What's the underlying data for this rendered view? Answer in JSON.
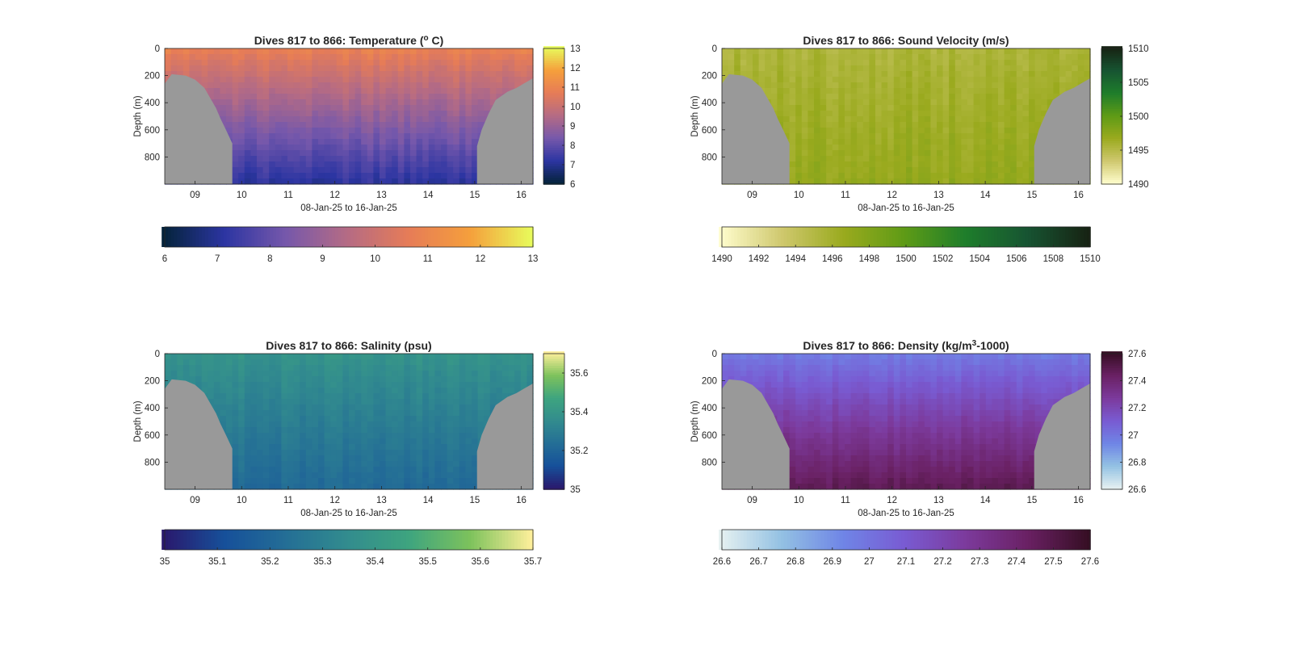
{
  "chart_data": [
    {
      "type": "heatmap",
      "title": "Dives 817 to 866: Temperature (",
      "title_sup": "o",
      "title_end": " C)",
      "xlabel": "08-Jan-25 to 16-Jan-25",
      "ylabel": "Depth (m)",
      "x_ticks": [
        "09",
        "10",
        "11",
        "12",
        "13",
        "14",
        "15",
        "16"
      ],
      "x_range": [
        "08-Jan-25",
        "16-Jan-25"
      ],
      "y_ticks": [
        "0",
        "200",
        "400",
        "600",
        "800"
      ],
      "ylim": [
        0,
        1000
      ],
      "colormap": "thermal",
      "colors": [
        "#04233a",
        "#2c35a2",
        "#7658ab",
        "#b56b84",
        "#e67c57",
        "#f59f3c",
        "#e8fa5b"
      ],
      "surface_value": 10.8,
      "bottom_value": 7.2,
      "clim": [
        6,
        13
      ],
      "right_colorbar_ticks": [
        "6",
        "7",
        "8",
        "9",
        "10",
        "11",
        "12",
        "13"
      ],
      "bottom_colorbar_ticks": [
        "6",
        "7",
        "8",
        "9",
        "10",
        "11",
        "12",
        "13"
      ]
    },
    {
      "type": "heatmap",
      "title": "Dives 817 to 866: Sound Velocity (m/s)",
      "title_sup": "",
      "title_end": "",
      "xlabel": "08-Jan-25 to 16-Jan-25",
      "ylabel": "Depth (m)",
      "x_ticks": [
        "09",
        "10",
        "11",
        "12",
        "13",
        "14",
        "15",
        "16"
      ],
      "x_range": [
        "08-Jan-25",
        "16-Jan-25"
      ],
      "y_ticks": [
        "0",
        "200",
        "400",
        "600",
        "800"
      ],
      "ylim": [
        0,
        1000
      ],
      "colormap": "speed",
      "colors": [
        "#fffdcd",
        "#cfc86e",
        "#9aaa1e",
        "#5e9b16",
        "#1e7d2b",
        "#175432",
        "#172313"
      ],
      "surface_value": 1495.5,
      "bottom_value": 1497.0,
      "clim": [
        1490,
        1510
      ],
      "right_colorbar_ticks": [
        "1490",
        "1495",
        "1500",
        "1505",
        "1510"
      ],
      "bottom_colorbar_ticks": [
        "1490",
        "1492",
        "1494",
        "1496",
        "1498",
        "1500",
        "1502",
        "1504",
        "1506",
        "1508",
        "1510"
      ]
    },
    {
      "type": "heatmap",
      "title": "Dives 817 to 866: Salinity (psu)",
      "title_sup": "",
      "title_end": "",
      "xlabel": "08-Jan-25 to 16-Jan-25",
      "ylabel": "Depth (m)",
      "x_ticks": [
        "09",
        "10",
        "11",
        "12",
        "13",
        "14",
        "15",
        "16"
      ],
      "x_range": [
        "08-Jan-25",
        "16-Jan-25"
      ],
      "y_ticks": [
        "0",
        "200",
        "400",
        "600",
        "800"
      ],
      "ylim": [
        0,
        1000
      ],
      "colormap": "haline",
      "colors": [
        "#2a186c",
        "#16509a",
        "#246e96",
        "#328c8e",
        "#3ea47f",
        "#7dc25c",
        "#fdef9a"
      ],
      "surface_value": 35.38,
      "bottom_value": 35.22,
      "clim": [
        35,
        35.7
      ],
      "right_colorbar_ticks": [
        "35",
        "35.2",
        "35.4",
        "35.6"
      ],
      "bottom_colorbar_ticks": [
        "35",
        "35.1",
        "35.2",
        "35.3",
        "35.4",
        "35.5",
        "35.6",
        "35.7"
      ]
    },
    {
      "type": "heatmap",
      "title": "Dives 817 to 866: Density (kg/m",
      "title_sup": "3",
      "title_end": "-1000)",
      "xlabel": "08-Jan-25 to 16-Jan-25",
      "ylabel": "Depth (m)",
      "x_ticks": [
        "09",
        "10",
        "11",
        "12",
        "13",
        "14",
        "15",
        "16"
      ],
      "x_range": [
        "08-Jan-25",
        "16-Jan-25"
      ],
      "y_ticks": [
        "0",
        "200",
        "400",
        "600",
        "800"
      ],
      "ylim": [
        0,
        1000
      ],
      "colormap": "dense",
      "colors": [
        "#e6f1f1",
        "#93c1e3",
        "#6f85e6",
        "#795bd2",
        "#7c3a9c",
        "#6a2164",
        "#360e24"
      ],
      "surface_value": 26.98,
      "bottom_value": 27.47,
      "clim": [
        26.6,
        27.6
      ],
      "right_colorbar_ticks": [
        "26.6",
        "26.8",
        "27",
        "27.2",
        "27.4",
        "27.6"
      ],
      "bottom_colorbar_ticks": [
        "26.6",
        "26.7",
        "26.8",
        "26.9",
        "27",
        "27.1",
        "27.2",
        "27.3",
        "27.4",
        "27.5",
        "27.6"
      ]
    }
  ]
}
